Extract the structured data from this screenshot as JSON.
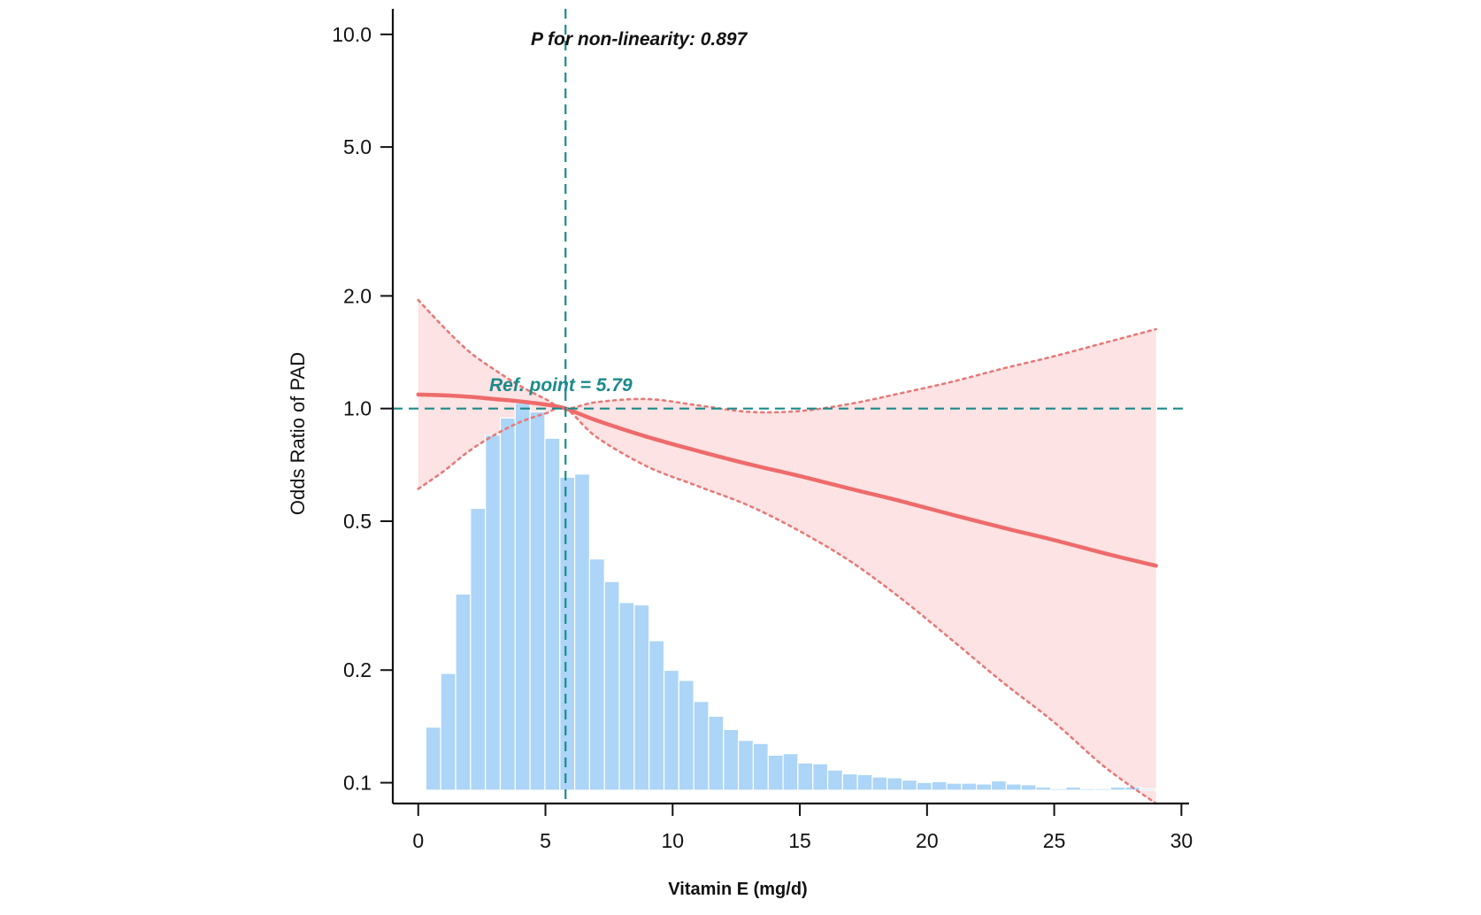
{
  "chart_data": {
    "type": "line",
    "title": "",
    "xlabel": "Vitamin E (mg/d)",
    "ylabel": "Odds Ratio of PAD",
    "y_scale": "log",
    "xlim": [
      -1,
      30.3
    ],
    "ylim": [
      0.088,
      11.7
    ],
    "x_ticks": [
      0,
      5,
      10,
      15,
      20,
      25,
      30
    ],
    "x_tick_labels": [
      "0",
      "5",
      "10",
      "15",
      "20",
      "25",
      "30"
    ],
    "y_ticks": [
      0.1,
      0.2,
      0.5,
      1.0,
      2.0,
      5.0,
      10.0
    ],
    "y_tick_labels": [
      "0.1",
      "0.2",
      "0.5",
      "1.0",
      "2.0",
      "5.0",
      "10.0"
    ],
    "grid": false,
    "legend": "none",
    "annotations": {
      "p_nonlinearity": "P for non-linearity: 0.897",
      "ref_point_label": "Ref. point = 5.79"
    },
    "reference": {
      "x": 5.79,
      "y": 1.0
    },
    "colors": {
      "curve": "#ee6b6b",
      "band": "#fde3e3",
      "ci": "#e57a7a",
      "bars": "#acd5f7",
      "reference": "#1b8a8a",
      "axis": "#111111"
    },
    "series": [
      {
        "name": "",
        "role": "estimate",
        "x": [
          0,
          1,
          2,
          3,
          4,
          5,
          5.79,
          7,
          9,
          11,
          13,
          15,
          17,
          19,
          21,
          23,
          25,
          27,
          29
        ],
        "y": [
          1.09,
          1.085,
          1.075,
          1.06,
          1.045,
          1.025,
          1.0,
          0.93,
          0.84,
          0.77,
          0.71,
          0.66,
          0.61,
          0.565,
          0.52,
          0.48,
          0.445,
          0.41,
          0.38
        ]
      },
      {
        "name": "",
        "role": "upper_ci",
        "x": [
          0,
          1,
          2,
          3,
          4,
          5,
          5.79,
          7,
          9,
          11,
          13,
          15,
          17,
          19,
          21,
          23,
          25,
          27,
          29
        ],
        "y": [
          1.95,
          1.65,
          1.42,
          1.27,
          1.15,
          1.06,
          1.0,
          1.04,
          1.06,
          1.02,
          0.98,
          0.985,
          1.03,
          1.1,
          1.18,
          1.28,
          1.38,
          1.5,
          1.63
        ]
      },
      {
        "name": "",
        "role": "lower_ci",
        "x": [
          0,
          1,
          2,
          3,
          4,
          5,
          5.79,
          7,
          9,
          11,
          13,
          15,
          17,
          19,
          21,
          23,
          25,
          27,
          29
        ],
        "y": [
          0.61,
          0.68,
          0.77,
          0.85,
          0.92,
          0.97,
          1.0,
          0.84,
          0.7,
          0.62,
          0.55,
          0.47,
          0.39,
          0.31,
          0.24,
          0.185,
          0.145,
          0.11,
          0.088
        ]
      }
    ],
    "histogram": {
      "bin_width": 0.585,
      "bin_start": 0.3,
      "heights": [
        0.081,
        0.15,
        0.252,
        0.362,
        0.456,
        0.478,
        0.497,
        0.486,
        0.452,
        0.402,
        0.406,
        0.297,
        0.268,
        0.241,
        0.238,
        0.192,
        0.154,
        0.141,
        0.114,
        0.095,
        0.078,
        0.064,
        0.06,
        0.045,
        0.047,
        0.035,
        0.034,
        0.026,
        0.021,
        0.02,
        0.017,
        0.016,
        0.013,
        0.01,
        0.011,
        0.009,
        0.009,
        0.008,
        0.012,
        0.008,
        0.007,
        0.004,
        0.002,
        0.004,
        0.002,
        0.002,
        0.004,
        0.004,
        0.002
      ]
    }
  }
}
